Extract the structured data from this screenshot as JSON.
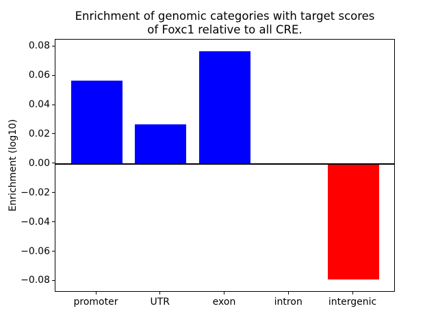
{
  "title": {
    "line1": "Enrichment of genomic categories with target scores",
    "line2": "of Foxc1 relative to all CRE."
  },
  "chart_data": {
    "type": "bar",
    "title": "Enrichment of genomic categories with target scores\nof Foxc1 relative to all CRE.",
    "xlabel": "",
    "ylabel": "Enrichment (log10)",
    "categories": [
      "promoter",
      "UTR",
      "exon",
      "intron",
      "intergenic"
    ],
    "values": [
      0.057,
      0.027,
      0.077,
      0.0,
      -0.079
    ],
    "bar_colors": [
      "#0000ff",
      "#0000ff",
      "#0000ff",
      "#0000ff",
      "#ff0000"
    ],
    "positive_color": "#0000ff",
    "negative_color": "#ff0000",
    "ylim": [
      -0.0868,
      0.0848
    ],
    "yticks": [
      0.08,
      0.06,
      0.04,
      0.02,
      0.0,
      -0.02,
      -0.04,
      -0.06,
      -0.08
    ],
    "ytick_labels": [
      "0.08",
      "0.06",
      "0.04",
      "0.02",
      "0.00",
      "−0.02",
      "−0.04",
      "−0.06",
      "−0.08"
    ],
    "zero_line": true,
    "zero_line_color": "#000000",
    "grid": false,
    "legend": null,
    "axis_color": "#000000",
    "background_color": "#ffffff"
  }
}
